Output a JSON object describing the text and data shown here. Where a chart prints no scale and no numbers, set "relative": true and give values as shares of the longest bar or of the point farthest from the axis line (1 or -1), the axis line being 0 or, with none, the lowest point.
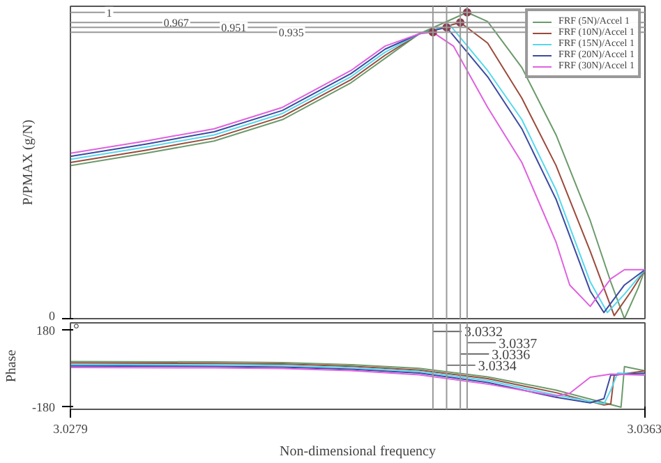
{
  "chart_data": [
    {
      "type": "line",
      "ylabel": "P/PMAX (g/N)",
      "relative": true,
      "annotations": [
        "0"
      ],
      "xlim": [
        3.0279,
        3.0363
      ],
      "grid": false,
      "legend": "top right",
      "line_style": "solid",
      "series": [
        {
          "name": "FRF (5N)/Accel 1",
          "color": "#6b9a6b",
          "x": [
            3.0279,
            3.029,
            3.03,
            3.031,
            3.032,
            3.0325,
            3.033,
            3.0337,
            3.034,
            3.0345,
            3.035,
            3.0355,
            3.0358,
            3.036,
            3.0362,
            3.0363
          ],
          "values": [
            0.5,
            0.54,
            0.58,
            0.65,
            0.77,
            0.85,
            0.93,
            1,
            0.97,
            0.82,
            0.6,
            0.32,
            0.12,
            0.0,
            0.1,
            0.16
          ]
        },
        {
          "name": "FRF (10N)/Accel 1",
          "color": "#9b4a3a",
          "x": [
            3.0279,
            3.029,
            3.03,
            3.031,
            3.032,
            3.0325,
            3.033,
            3.0336,
            3.034,
            3.0345,
            3.035,
            3.0355,
            3.03585,
            3.0361,
            3.0363
          ],
          "values": [
            0.51,
            0.55,
            0.59,
            0.66,
            0.78,
            0.86,
            0.93,
            0.967,
            0.9,
            0.72,
            0.5,
            0.22,
            0.01,
            0.09,
            0.16
          ]
        },
        {
          "name": "FRF (15N)/Accel 1",
          "color": "#55d8ee",
          "x": [
            3.0279,
            3.029,
            3.03,
            3.031,
            3.032,
            3.0325,
            3.033,
            3.03345,
            3.034,
            3.0345,
            3.035,
            3.0355,
            3.03575,
            3.036,
            3.0363
          ],
          "values": [
            0.52,
            0.56,
            0.6,
            0.67,
            0.79,
            0.87,
            0.93,
            0.958,
            0.81,
            0.65,
            0.42,
            0.12,
            0.02,
            0.08,
            0.16
          ]
        },
        {
          "name": "FRF (20N)/Accel 1",
          "color": "#3a4aa0",
          "x": [
            3.0279,
            3.029,
            3.03,
            3.031,
            3.032,
            3.0325,
            3.033,
            3.0334,
            3.034,
            3.0345,
            3.035,
            3.0355,
            3.0357,
            3.036,
            3.0363
          ],
          "values": [
            0.53,
            0.57,
            0.61,
            0.68,
            0.8,
            0.88,
            0.93,
            0.951,
            0.79,
            0.62,
            0.39,
            0.09,
            0.02,
            0.11,
            0.16
          ]
        },
        {
          "name": "FRF (30N)/Accel 1",
          "color": "#e060e0",
          "x": [
            3.0279,
            3.029,
            3.03,
            3.031,
            3.032,
            3.0325,
            3.033,
            3.0332,
            3.0335,
            3.034,
            3.0345,
            3.035,
            3.0352,
            3.0355,
            3.0358,
            3.036,
            3.0363
          ],
          "values": [
            0.54,
            0.58,
            0.62,
            0.69,
            0.81,
            0.89,
            0.93,
            0.935,
            0.89,
            0.69,
            0.51,
            0.25,
            0.11,
            0.04,
            0.13,
            0.16,
            0.16
          ]
        },
        {
          "type": "scatter",
          "marker": "circle",
          "color": "#8b3a4a",
          "x": [
            3.0337,
            3.0336,
            3.0334,
            3.0332
          ],
          "values": [
            1,
            0.967,
            0.951,
            0.935
          ]
        }
      ],
      "ref_lines": [
        {
          "axis": "y",
          "value": 1,
          "label": "1",
          "color": "#999999"
        },
        {
          "axis": "y",
          "value": 0.967,
          "label": "0.967",
          "color": "#999999"
        },
        {
          "axis": "y",
          "value": 0.951,
          "label": "0.951",
          "color": "#999999"
        },
        {
          "axis": "y",
          "value": 0.935,
          "label": "0.935",
          "color": "#999999"
        },
        {
          "axis": "x",
          "value": 3.0332,
          "color": "#999999"
        },
        {
          "axis": "x",
          "value": 3.0334,
          "color": "#999999"
        },
        {
          "axis": "x",
          "value": 3.0336,
          "color": "#999999"
        },
        {
          "axis": "x",
          "value": 3.0337,
          "color": "#999999"
        }
      ]
    },
    {
      "type": "line",
      "xlabel": "Non-dimensional frequency",
      "ylabel": "Phase",
      "annotations": [
        "°"
      ],
      "xlim": [
        3.0279,
        3.0363
      ],
      "xticks": [
        3.0279,
        3.0363
      ],
      "ylim": [
        -190,
        215
      ],
      "yticks": [
        -180,
        180
      ],
      "grid": false,
      "line_style": "solid",
      "series": [
        {
          "color": "#6b9a6b",
          "x": [
            3.0279,
            3.03,
            3.031,
            3.032,
            3.033,
            3.034,
            3.035,
            3.03595,
            3.036,
            3.0363
          ],
          "values": [
            34,
            32,
            29,
            19,
            2,
            -38,
            -100,
            -180,
            10,
            -10
          ]
        },
        {
          "color": "#9b4a3a",
          "x": [
            3.0279,
            3.03,
            3.031,
            3.032,
            3.033,
            3.034,
            3.035,
            3.0357,
            3.0358,
            3.03585,
            3.0363
          ],
          "values": [
            27,
            25,
            22,
            12,
            -6,
            -46,
            -112,
            -170,
            -165,
            -30,
            -10
          ]
        },
        {
          "color": "#55d8ee",
          "x": [
            3.0279,
            3.03,
            3.031,
            3.032,
            3.033,
            3.034,
            3.035,
            3.0357,
            3.0358,
            3.0359,
            3.0363
          ],
          "values": [
            20,
            18,
            15,
            5,
            -13,
            -55,
            -123,
            -165,
            -100,
            -20,
            -25
          ]
        },
        {
          "color": "#3a4aa0",
          "x": [
            3.0279,
            3.03,
            3.031,
            3.032,
            3.033,
            3.034,
            3.035,
            3.0355,
            3.0357,
            3.0358,
            3.0363
          ],
          "values": [
            13,
            11,
            8,
            -2,
            -20,
            -64,
            -134,
            -160,
            -140,
            -30,
            -20
          ]
        },
        {
          "color": "#e060e0",
          "x": [
            3.0279,
            3.03,
            3.031,
            3.032,
            3.033,
            3.034,
            3.035,
            3.0352,
            3.0355,
            3.0358,
            3.0363
          ],
          "values": [
            6,
            4,
            1,
            -9,
            -28,
            -72,
            -128,
            -115,
            -40,
            -25,
            -30
          ]
        }
      ],
      "ref_lines": [
        {
          "axis": "x",
          "value": 3.0332,
          "label": "3.0332",
          "color": "#999999"
        },
        {
          "axis": "x",
          "value": 3.0337,
          "label": "3.0337",
          "color": "#999999"
        },
        {
          "axis": "x",
          "value": 3.0336,
          "label": "3.0336",
          "color": "#999999"
        },
        {
          "axis": "x",
          "value": 3.0334,
          "label": "3.0334",
          "color": "#999999"
        }
      ]
    }
  ]
}
